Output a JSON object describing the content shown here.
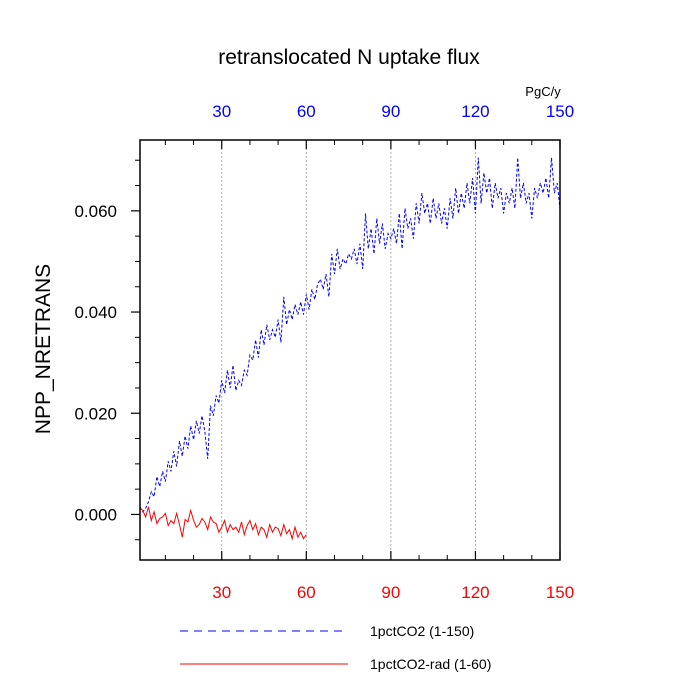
{
  "chart_data": {
    "type": "line",
    "title": "retranslocated N uptake flux",
    "ylabel": "NPP_NRETRANS",
    "top_axis_unit": "PgC/y",
    "xlim": [
      1,
      150
    ],
    "ylim": [
      -0.009,
      0.074
    ],
    "x_ticks": [
      30,
      60,
      90,
      120,
      150
    ],
    "y_ticks": [
      0.0,
      0.02,
      0.04,
      0.06
    ],
    "y_tick_labels": [
      "0.000",
      "0.020",
      "0.040",
      "0.060"
    ],
    "x_tick_labels": [
      "30",
      "60",
      "90",
      "120",
      "150"
    ],
    "vertical_gridlines_at": [
      30,
      60,
      90,
      120
    ],
    "colors": {
      "top_axis": "#0000ff",
      "bottom_axis": "#ff0000",
      "series_1": "#0000ff",
      "series_2": "#ff0000",
      "grid": "#999999"
    },
    "legend_position": "bottom",
    "series": [
      {
        "name": "1pctCO2 (1-150)",
        "color": "#0000ff",
        "style": "dashed",
        "x_start": 1,
        "values": [
          0.0015,
          0.0005,
          0.0012,
          0.0025,
          0.0045,
          0.0035,
          0.0075,
          0.0055,
          0.0085,
          0.0065,
          0.0105,
          0.0085,
          0.0125,
          0.0095,
          0.0145,
          0.0115,
          0.0155,
          0.013,
          0.0175,
          0.0148,
          0.0185,
          0.016,
          0.0195,
          0.0165,
          0.011,
          0.0215,
          0.0195,
          0.0235,
          0.022,
          0.0265,
          0.024,
          0.0285,
          0.025,
          0.0295,
          0.0245,
          0.0265,
          0.0255,
          0.0285,
          0.0275,
          0.0315,
          0.0305,
          0.0345,
          0.031,
          0.0365,
          0.0335,
          0.0375,
          0.0345,
          0.0365,
          0.035,
          0.0385,
          0.034,
          0.043,
          0.0375,
          0.0405,
          0.0385,
          0.0415,
          0.0395,
          0.042,
          0.0395,
          0.0435,
          0.0405,
          0.0445,
          0.0425,
          0.0455,
          0.0465,
          0.0445,
          0.0475,
          0.043,
          0.0515,
          0.0475,
          0.0525,
          0.0485,
          0.0505,
          0.0495,
          0.0515,
          0.0505,
          0.0525,
          0.0495,
          0.0535,
          0.0485,
          0.0595,
          0.0525,
          0.0565,
          0.0515,
          0.0585,
          0.0535,
          0.0575,
          0.0525,
          0.0555,
          0.0545,
          0.0565,
          0.0535,
          0.0595,
          0.0525,
          0.0605,
          0.0565,
          0.0585,
          0.0545,
          0.0615,
          0.0575,
          0.0635,
          0.0595,
          0.0615,
          0.0575,
          0.0625,
          0.0585,
          0.0615,
          0.0575,
          0.0605,
          0.0565,
          0.0625,
          0.0585,
          0.0645,
          0.0595,
          0.0635,
          0.0605,
          0.0655,
          0.0615,
          0.0665,
          0.0595,
          0.0705,
          0.0615,
          0.0675,
          0.0635,
          0.0665,
          0.0605,
          0.0655,
          0.0625,
          0.0645,
          0.0595,
          0.0635,
          0.0615,
          0.0645,
          0.0605,
          0.0705,
          0.0625,
          0.0655,
          0.0615,
          0.0635,
          0.0585,
          0.0645,
          0.0625,
          0.0655,
          0.0635,
          0.0665,
          0.0625,
          0.0705,
          0.0635,
          0.0655,
          0.0605
        ]
      },
      {
        "name": "1pctCO2-rad (1-60)",
        "color": "#ff0000",
        "style": "solid",
        "x_start": 1,
        "values": [
          0.0012,
          0.0008,
          -0.0005,
          0.0015,
          -0.0012,
          0.0005,
          -0.0018,
          -0.0008,
          -0.0005,
          0.0002,
          -0.0022,
          -0.0012,
          -0.0018,
          0.0002,
          -0.002,
          -0.0045,
          -0.001,
          -0.0015,
          0.0008,
          -0.0012,
          -0.0025,
          -0.002,
          -0.0008,
          -0.0015,
          -0.003,
          -0.0005,
          -0.0015,
          -0.0018,
          -0.0035,
          -0.0025,
          -0.0012,
          -0.0035,
          -0.002,
          -0.003,
          -0.0025,
          -0.0035,
          -0.0015,
          -0.004,
          -0.0022,
          -0.0012,
          -0.003,
          -0.0018,
          -0.004,
          -0.0025,
          -0.003,
          -0.0045,
          -0.002,
          -0.0035,
          -0.0025,
          -0.0028,
          -0.0042,
          -0.002,
          -0.0038,
          -0.003,
          -0.0048,
          -0.0025,
          -0.0045,
          -0.0035,
          -0.0048,
          -0.004
        ]
      }
    ]
  }
}
